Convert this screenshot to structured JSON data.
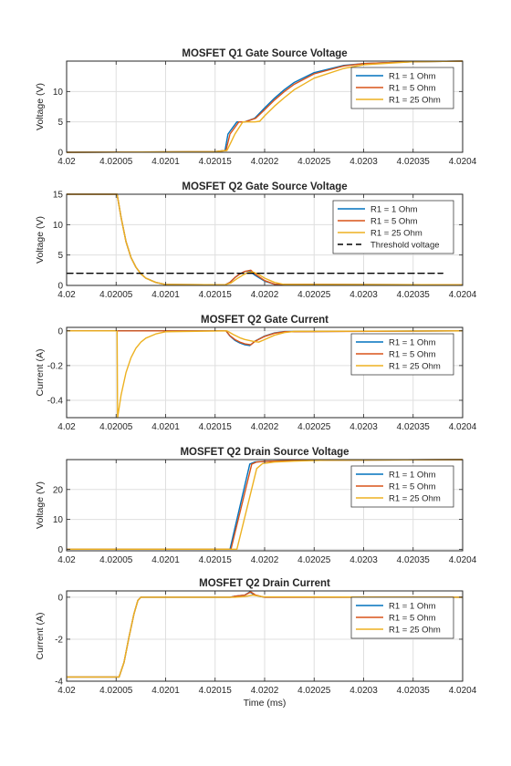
{
  "chart_data": [
    {
      "type": "line",
      "title": "MOSFET Q1 Gate Source Voltage",
      "xlabel": "",
      "ylabel": "Voltage (V)",
      "xlim": [
        4.02,
        4.0204
      ],
      "ylim": [
        0,
        15
      ],
      "xticks": [
        4.02,
        4.02005,
        4.0201,
        4.02015,
        4.0202,
        4.02025,
        4.0203,
        4.02035,
        4.0204
      ],
      "xtick_labels": [
        "4.02",
        "4.02005",
        "4.0201",
        "4.02015",
        "4.0202",
        "4.02025",
        "4.0203",
        "4.02035",
        "4.0204"
      ],
      "yticks": [
        0,
        5,
        10
      ],
      "ytick_labels": [
        "0",
        "5",
        "10"
      ],
      "grid": true,
      "legend_position": "top-right",
      "series": [
        {
          "name": "R1 = 1 Ohm",
          "color": "#0072BD",
          "x": [
            4.02,
            4.02015,
            4.02016,
            4.020163,
            4.020172,
            4.02018,
            4.02019,
            4.0202,
            4.02021,
            4.02022,
            4.02023,
            4.02025,
            4.02028,
            4.0203,
            4.02035,
            4.0204
          ],
          "y": [
            0,
            0.1,
            0.3,
            3.0,
            5.0,
            5.0,
            5.6,
            7.3,
            8.9,
            10.3,
            11.5,
            13.1,
            14.3,
            14.6,
            14.9,
            15.0
          ]
        },
        {
          "name": "R1 = 5 Ohm",
          "color": "#D95319",
          "x": [
            4.02,
            4.02015,
            4.020161,
            4.020165,
            4.020174,
            4.02018,
            4.020191,
            4.0202,
            4.02021,
            4.02022,
            4.02023,
            4.02025,
            4.02028,
            4.0203,
            4.02035,
            4.0204
          ],
          "y": [
            0,
            0.1,
            0.3,
            3.0,
            5.0,
            5.0,
            5.6,
            7.0,
            8.6,
            10.0,
            11.2,
            12.9,
            14.2,
            14.6,
            14.9,
            15.0
          ]
        },
        {
          "name": "R1 = 25 Ohm",
          "color": "#EDB120",
          "x": [
            4.02,
            4.02015,
            4.020162,
            4.02017,
            4.020178,
            4.02019,
            4.020195,
            4.0202,
            4.02021,
            4.02022,
            4.02023,
            4.02025,
            4.02028,
            4.0203,
            4.02035,
            4.0204
          ],
          "y": [
            0,
            0.1,
            0.3,
            3.0,
            5.0,
            5.0,
            5.1,
            6.0,
            7.6,
            9.0,
            10.3,
            12.2,
            13.8,
            14.4,
            14.9,
            15.0
          ]
        }
      ]
    },
    {
      "type": "line",
      "title": "MOSFET Q2 Gate Source Voltage",
      "xlabel": "",
      "ylabel": "Voltage (V)",
      "xlim": [
        4.02,
        4.0204
      ],
      "ylim": [
        0,
        15
      ],
      "xticks": [
        4.02,
        4.02005,
        4.0201,
        4.02015,
        4.0202,
        4.02025,
        4.0203,
        4.02035,
        4.0204
      ],
      "xtick_labels": [
        "4.02",
        "4.02005",
        "4.0201",
        "4.02015",
        "4.0202",
        "4.02025",
        "4.0203",
        "4.02035",
        "4.0204"
      ],
      "yticks": [
        0,
        5,
        10,
        15
      ],
      "ytick_labels": [
        "0",
        "5",
        "10",
        "15"
      ],
      "grid": true,
      "legend_position": "top-right",
      "series": [
        {
          "name": "R1 = 1 Ohm",
          "color": "#0072BD",
          "x": [
            4.02,
            4.020051,
            4.020055,
            4.02006,
            4.020065,
            4.02007,
            4.020075,
            4.02008,
            4.02009,
            4.0201,
            4.02016,
            4.020165,
            4.02017,
            4.020175,
            4.02018,
            4.020185,
            4.02019,
            4.0202,
            4.02021,
            4.0204
          ],
          "y": [
            15,
            15,
            11.2,
            7.2,
            4.6,
            3.0,
            1.9,
            1.2,
            0.5,
            0.15,
            0.1,
            0.5,
            1.3,
            1.9,
            2.3,
            2.4,
            1.7,
            0.7,
            0.2,
            0.1
          ]
        },
        {
          "name": "R1 = 5 Ohm",
          "color": "#D95319",
          "x": [
            4.02,
            4.020051,
            4.020055,
            4.02006,
            4.020065,
            4.02007,
            4.020075,
            4.02008,
            4.02009,
            4.0201,
            4.02016,
            4.020165,
            4.02017,
            4.020175,
            4.02018,
            4.020186,
            4.020191,
            4.0202,
            4.02021,
            4.0204
          ],
          "y": [
            15,
            15,
            11.2,
            7.2,
            4.6,
            3.0,
            1.9,
            1.2,
            0.5,
            0.15,
            0.1,
            0.5,
            1.3,
            1.9,
            2.3,
            2.5,
            1.8,
            0.8,
            0.2,
            0.1
          ]
        },
        {
          "name": "R1 = 25 Ohm",
          "color": "#EDB120",
          "x": [
            4.02,
            4.020051,
            4.020055,
            4.02006,
            4.020065,
            4.02007,
            4.020075,
            4.02008,
            4.02009,
            4.0201,
            4.02016,
            4.020166,
            4.020172,
            4.020178,
            4.020183,
            4.020188,
            4.020193,
            4.0202,
            4.02021,
            4.02022,
            4.0204
          ],
          "y": [
            15,
            15,
            11.2,
            7.2,
            4.6,
            3.0,
            1.9,
            1.2,
            0.5,
            0.15,
            0.1,
            0.4,
            1.1,
            1.7,
            2.1,
            2.2,
            1.9,
            1.2,
            0.5,
            0.15,
            0.1
          ]
        },
        {
          "name": "Threshold voltage",
          "color": "#000000",
          "dashed": true,
          "x": [
            4.02,
            4.02038
          ],
          "y": [
            2,
            2
          ]
        }
      ]
    },
    {
      "type": "line",
      "title": "MOSFET Q2 Gate Current",
      "xlabel": "",
      "ylabel": "Current (A)",
      "xlim": [
        4.02,
        4.0204
      ],
      "ylim": [
        -0.5,
        0.02
      ],
      "xticks": [
        4.02,
        4.02005,
        4.0201,
        4.02015,
        4.0202,
        4.02025,
        4.0203,
        4.02035,
        4.0204
      ],
      "xtick_labels": [
        "4.02",
        "4.02005",
        "4.0201",
        "4.02015",
        "4.0202",
        "4.02025",
        "4.0203",
        "4.02035",
        "4.0204"
      ],
      "yticks": [
        -0.4,
        -0.2,
        0
      ],
      "ytick_labels": [
        "-0.4",
        "-0.2",
        "0"
      ],
      "grid": true,
      "legend_position": "top-right",
      "series": [
        {
          "name": "R1 = 1 Ohm",
          "color": "#0072BD",
          "x": [
            4.02,
            4.020161,
            4.020165,
            4.02017,
            4.020175,
            4.02018,
            4.020185,
            4.02019,
            4.0202,
            4.02021,
            4.02022,
            4.0204
          ],
          "y": [
            0,
            0,
            -0.03,
            -0.055,
            -0.07,
            -0.08,
            -0.085,
            -0.06,
            -0.03,
            -0.012,
            -0.004,
            0
          ]
        },
        {
          "name": "R1 = 5 Ohm",
          "color": "#D95319",
          "x": [
            4.02,
            4.020161,
            4.020165,
            4.02017,
            4.020175,
            4.02018,
            4.020186,
            4.020191,
            4.0202,
            4.02021,
            4.02022,
            4.0204
          ],
          "y": [
            0,
            0,
            -0.028,
            -0.05,
            -0.065,
            -0.075,
            -0.08,
            -0.058,
            -0.032,
            -0.014,
            -0.005,
            0
          ]
        },
        {
          "name": "R1 = 25 Ohm",
          "color": "#EDB120",
          "x": [
            4.02,
            4.020051,
            4.0200515,
            4.020055,
            4.02006,
            4.020065,
            4.02007,
            4.020075,
            4.02008,
            4.02009,
            4.0201,
            4.020162,
            4.020168,
            4.020175,
            4.02018,
            4.020188,
            4.020194,
            4.0202,
            4.02021,
            4.02022,
            4.02023,
            4.0204
          ],
          "y": [
            0,
            0,
            -0.5,
            -0.37,
            -0.24,
            -0.155,
            -0.1,
            -0.065,
            -0.042,
            -0.018,
            -0.005,
            0,
            -0.02,
            -0.04,
            -0.05,
            -0.06,
            -0.065,
            -0.05,
            -0.025,
            -0.01,
            -0.003,
            0
          ]
        }
      ]
    },
    {
      "type": "line",
      "title": "MOSFET Q2 Drain Source Voltage",
      "xlabel": "",
      "ylabel": "Voltage (V)",
      "xlim": [
        4.02,
        4.0204
      ],
      "ylim": [
        -0.5,
        30
      ],
      "xticks": [
        4.02,
        4.02005,
        4.0201,
        4.02015,
        4.0202,
        4.02025,
        4.0203,
        4.02035,
        4.0204
      ],
      "xtick_labels": [
        "4.02",
        "4.02005",
        "4.0201",
        "4.02015",
        "4.0202",
        "4.02025",
        "4.0203",
        "4.02035",
        "4.0204"
      ],
      "yticks": [
        0,
        10,
        20
      ],
      "ytick_labels": [
        "0",
        "10",
        "20"
      ],
      "grid": true,
      "legend_position": "top-right",
      "series": [
        {
          "name": "R1 = 1 Ohm",
          "color": "#0072BD",
          "x": [
            4.02,
            4.020165,
            4.020185,
            4.02019,
            4.0202,
            4.02022,
            4.02025,
            4.0204
          ],
          "y": [
            0,
            0,
            28.5,
            29.2,
            29.4,
            29.6,
            29.8,
            30
          ]
        },
        {
          "name": "R1 = 5 Ohm",
          "color": "#D95319",
          "x": [
            4.02,
            4.020166,
            4.020187,
            4.020192,
            4.0202,
            4.02022,
            4.02025,
            4.0204
          ],
          "y": [
            0,
            0,
            28.5,
            29.2,
            29.4,
            29.6,
            29.8,
            30
          ]
        },
        {
          "name": "R1 = 25 Ohm",
          "color": "#EDB120",
          "x": [
            4.02,
            4.020172,
            4.020192,
            4.020198,
            4.02021,
            4.02023,
            4.02026,
            4.0204
          ],
          "y": [
            0,
            0,
            27.0,
            28.7,
            29.2,
            29.5,
            29.8,
            30
          ]
        }
      ]
    },
    {
      "type": "line",
      "title": "MOSFET Q2 Drain Current",
      "xlabel": "Time (ms)",
      "ylabel": "Current (A)",
      "xlim": [
        4.02,
        4.0204
      ],
      "ylim": [
        -4,
        0.3
      ],
      "xticks": [
        4.02,
        4.02005,
        4.0201,
        4.02015,
        4.0202,
        4.02025,
        4.0203,
        4.02035,
        4.0204
      ],
      "xtick_labels": [
        "4.02",
        "4.02005",
        "4.0201",
        "4.02015",
        "4.0202",
        "4.02025",
        "4.0203",
        "4.02035",
        "4.0204"
      ],
      "yticks": [
        -4,
        -2,
        0
      ],
      "ytick_labels": [
        "-4",
        "-2",
        "0"
      ],
      "grid": true,
      "legend_position": "top-right",
      "series": [
        {
          "name": "R1 = 1 Ohm",
          "color": "#0072BD",
          "x": [
            4.02,
            4.020053,
            4.020058,
            4.020063,
            4.020068,
            4.020072,
            4.020075,
            4.020165,
            4.02017,
            4.02018,
            4.020185,
            4.02019,
            4.020195,
            4.0202,
            4.0204
          ],
          "y": [
            -3.8,
            -3.8,
            -3.1,
            -1.9,
            -0.8,
            -0.15,
            0,
            0,
            0.05,
            0.1,
            0.25,
            0.1,
            0.04,
            0,
            0
          ]
        },
        {
          "name": "R1 = 5 Ohm",
          "color": "#D95319",
          "x": [
            4.02,
            4.020053,
            4.020058,
            4.020063,
            4.020068,
            4.020072,
            4.020075,
            4.020166,
            4.02017,
            4.02018,
            4.020186,
            4.020191,
            4.020196,
            4.0202,
            4.0204
          ],
          "y": [
            -3.8,
            -3.8,
            -3.1,
            -1.9,
            -0.8,
            -0.15,
            0,
            0,
            0.05,
            0.1,
            0.25,
            0.1,
            0.04,
            0,
            0
          ]
        },
        {
          "name": "R1 = 25 Ohm",
          "color": "#EDB120",
          "x": [
            4.02,
            4.020053,
            4.020058,
            4.020063,
            4.020068,
            4.020072,
            4.020075,
            4.02017,
            4.02018,
            4.020188,
            4.020192,
            4.020198,
            4.0204
          ],
          "y": [
            -3.8,
            -3.8,
            -3.1,
            -1.9,
            -0.8,
            -0.15,
            0,
            0,
            0.03,
            0.1,
            0.07,
            0.02,
            0
          ]
        }
      ]
    }
  ]
}
